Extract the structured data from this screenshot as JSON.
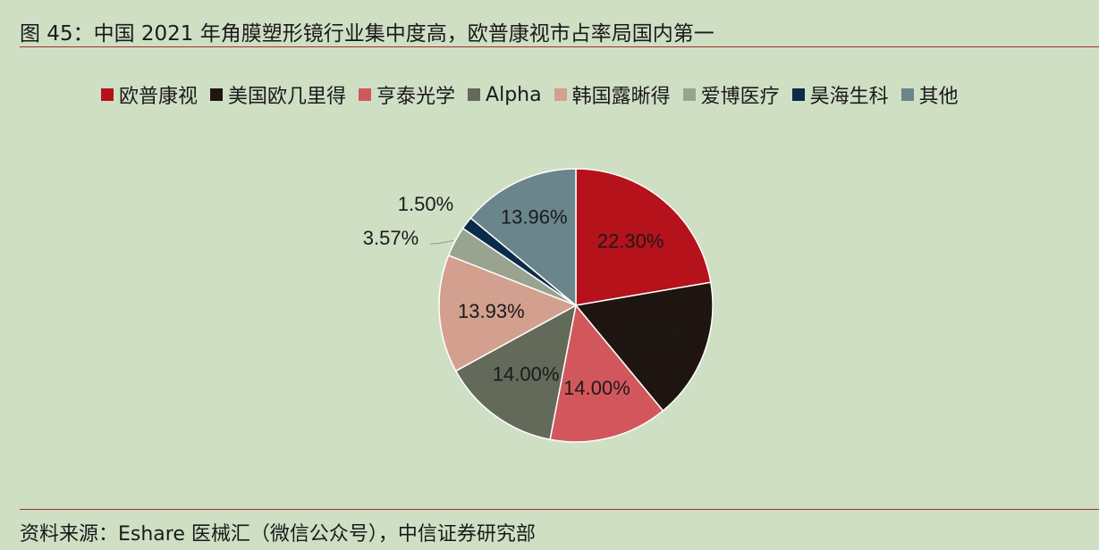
{
  "title": "图 45：中国 2021 年角膜塑形镜行业集中度高，欧普康视市占率局国内第一",
  "source": "资料来源：Eshare 医械汇（微信公众号），中信证券研究部",
  "chart_data": {
    "type": "pie",
    "categories": [
      "欧普康视",
      "美国欧几里得",
      "亨泰光学",
      "Alpha",
      "韩国露晰得",
      "爱博医疗",
      "昊海生科",
      "其他"
    ],
    "values": [
      22.3,
      16.71,
      14.0,
      14.0,
      13.93,
      3.57,
      1.5,
      13.96
    ],
    "labels": [
      "22.30%",
      "16.71%",
      "14.00%",
      "14.00%",
      "13.93%",
      "3.57%",
      "1.50%",
      "13.96%"
    ],
    "colors": [
      "#b5121b",
      "#1f1510",
      "#d2575c",
      "#636a5a",
      "#d39f8e",
      "#98a490",
      "#0b2b4a",
      "#6a858b"
    ],
    "legend_position": "top",
    "start_angle_deg": 0,
    "direction": "clockwise"
  }
}
